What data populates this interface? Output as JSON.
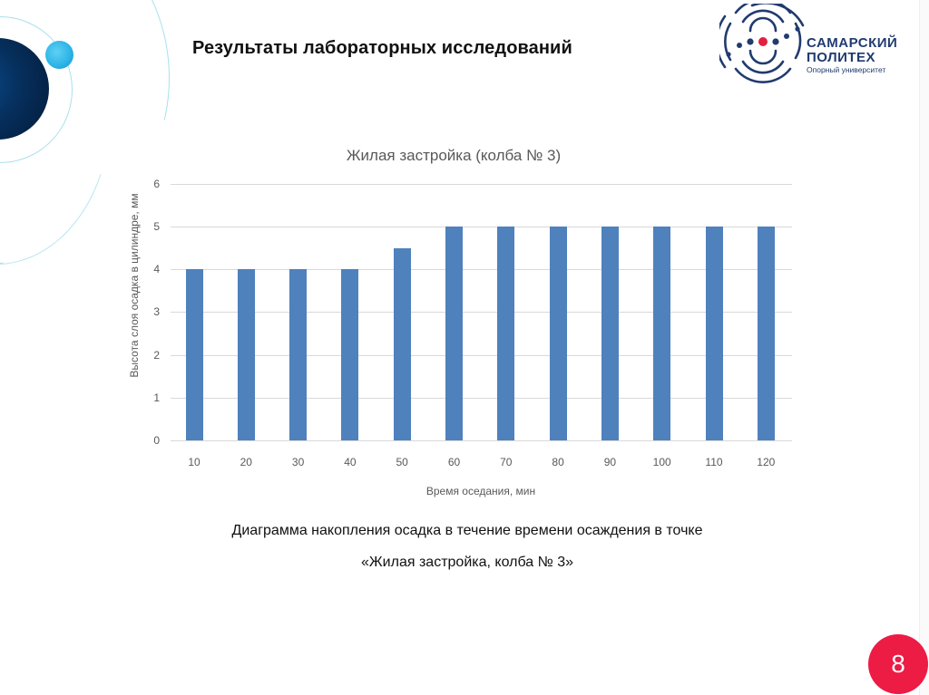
{
  "slide": {
    "title": "Результаты лабораторных исследований",
    "page_number": "8",
    "accent_color": "#ec1c45",
    "logo": {
      "line1": "САМАРСКИЙ",
      "line2": "ПОЛИТЕХ",
      "tagline": "Опорный университет",
      "primary_color": "#213a70",
      "dot_color": "#e4203f"
    },
    "caption": {
      "line1": "Диаграмма накопления осадка в течение времени осаждения в точке",
      "line2": "«Жилая застройка, колба № 3»"
    }
  },
  "chart_data": {
    "type": "bar",
    "title": "Жилая застройка (колба № 3)",
    "xlabel": "Время оседания, мин",
    "ylabel": "Высота слоя осадка в цилиндре, мм",
    "categories": [
      "10",
      "20",
      "30",
      "40",
      "50",
      "60",
      "70",
      "80",
      "90",
      "100",
      "110",
      "120"
    ],
    "values": [
      4,
      4,
      4,
      4,
      4.5,
      5,
      5,
      5,
      5,
      5,
      5,
      5
    ],
    "yticks": [
      "0",
      "1",
      "2",
      "3",
      "4",
      "5",
      "6"
    ],
    "ylim": [
      0,
      6
    ],
    "grid": true,
    "legend": false,
    "bar_color": "#4f81bd"
  }
}
